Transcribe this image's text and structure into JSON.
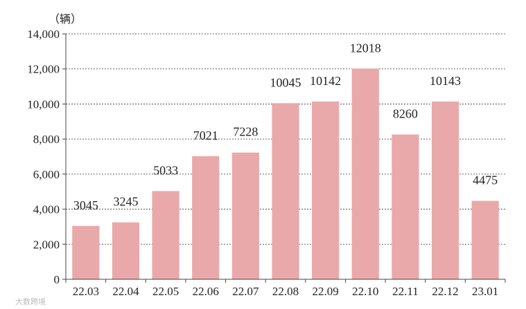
{
  "chart_data": {
    "type": "bar",
    "unit_label": "（辆）",
    "categories": [
      "22.03",
      "22.04",
      "22.05",
      "22.06",
      "22.07",
      "22.08",
      "22.09",
      "22.10",
      "22.11",
      "22.12",
      "23.01"
    ],
    "values": [
      3045,
      3245,
      5033,
      7021,
      7228,
      10045,
      10142,
      12018,
      8260,
      10143,
      4475
    ],
    "ylim": [
      0,
      14000
    ],
    "yticks": [
      0,
      2000,
      4000,
      6000,
      8000,
      10000,
      12000,
      14000
    ],
    "ytick_labels": [
      "0",
      "2,000",
      "4,000",
      "6,000",
      "8,000",
      "10,000",
      "12,000",
      "14,000"
    ],
    "grid": true,
    "bar_color": "#e9a9aa",
    "watermark": "大数跨境"
  }
}
